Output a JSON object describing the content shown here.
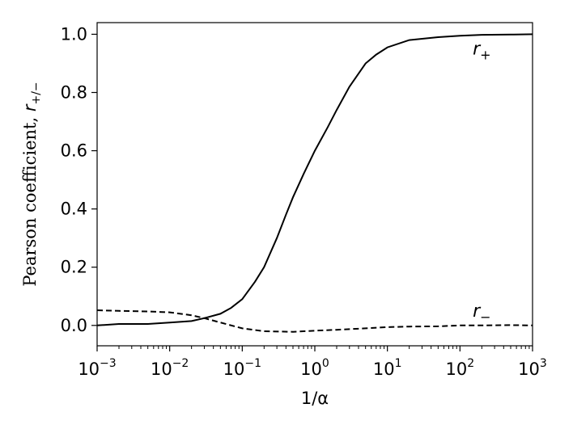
{
  "chart_data": {
    "type": "line",
    "title": "",
    "xscale": "log",
    "xlim": [
      0.001,
      1000
    ],
    "ylim": [
      -0.07,
      1.04
    ],
    "xlabel": "1/α",
    "ylabel_text": "Pearson coefficient, ",
    "ylabel_symbol": "r",
    "ylabel_subscript": "+/−",
    "xticks": [
      {
        "value": 0.001,
        "base": "10",
        "exp": "−3"
      },
      {
        "value": 0.01,
        "base": "10",
        "exp": "−2"
      },
      {
        "value": 0.1,
        "base": "10",
        "exp": "−1"
      },
      {
        "value": 1,
        "base": "10",
        "exp": "0"
      },
      {
        "value": 10,
        "base": "10",
        "exp": "1"
      },
      {
        "value": 100,
        "base": "10",
        "exp": "2"
      },
      {
        "value": 1000,
        "base": "10",
        "exp": "3"
      }
    ],
    "yticks": [
      {
        "value": 0.0,
        "label": "0.0"
      },
      {
        "value": 0.2,
        "label": "0.2"
      },
      {
        "value": 0.4,
        "label": "0.4"
      },
      {
        "value": 0.6,
        "label": "0.6"
      },
      {
        "value": 0.8,
        "label": "0.8"
      },
      {
        "value": 1.0,
        "label": "1.0"
      }
    ],
    "series": [
      {
        "style": "solid",
        "x": [
          0.001,
          0.002,
          0.005,
          0.01,
          0.02,
          0.03,
          0.05,
          0.07,
          0.1,
          0.15,
          0.2,
          0.3,
          0.4,
          0.5,
          0.7,
          1,
          1.5,
          2,
          3,
          5,
          7,
          10,
          20,
          50,
          100,
          200,
          500,
          1000
        ],
        "y": [
          0.0,
          0.005,
          0.005,
          0.01,
          0.015,
          0.025,
          0.04,
          0.06,
          0.09,
          0.15,
          0.2,
          0.3,
          0.38,
          0.44,
          0.52,
          0.6,
          0.68,
          0.74,
          0.82,
          0.9,
          0.93,
          0.955,
          0.98,
          0.99,
          0.995,
          0.998,
          0.999,
          1.0
        ]
      },
      {
        "style": "dashed",
        "x": [
          0.001,
          0.002,
          0.005,
          0.01,
          0.02,
          0.03,
          0.05,
          0.1,
          0.2,
          0.5,
          1,
          2,
          5,
          10,
          20,
          50,
          100,
          200,
          500,
          1000
        ],
        "y": [
          0.052,
          0.05,
          0.048,
          0.045,
          0.035,
          0.025,
          0.01,
          -0.01,
          -0.02,
          -0.022,
          -0.018,
          -0.015,
          -0.01,
          -0.006,
          -0.004,
          -0.003,
          0.0,
          0.0,
          0.001,
          0.0
        ]
      }
    ],
    "annotations": [
      {
        "symbol": "r",
        "subscript": "+",
        "x": 150,
        "y": 0.95
      },
      {
        "symbol": "r",
        "subscript": "−",
        "x": 150,
        "y": 0.05
      }
    ]
  }
}
